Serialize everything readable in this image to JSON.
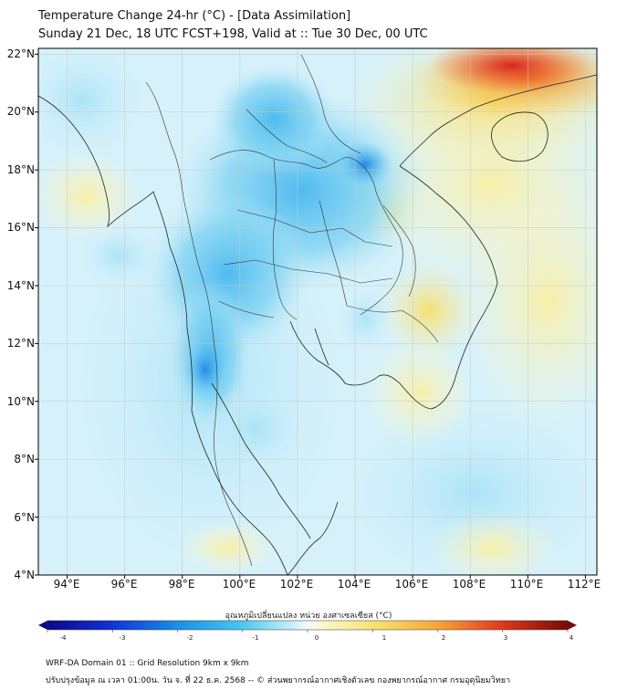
{
  "header": {
    "title": "Temperature Change 24-hr (°C) - [Data Assimilation]",
    "subtitle": "Sunday 21 Dec, 18 UTC FCST+198, Valid at :: Tue 30 Dec, 00 UTC"
  },
  "axes": {
    "lat_labels": [
      "22°N",
      "20°N",
      "18°N",
      "16°N",
      "14°N",
      "12°N",
      "10°N",
      "8°N",
      "6°N",
      "4°N"
    ],
    "lon_labels": [
      "94°E",
      "96°E",
      "98°E",
      "100°E",
      "102°E",
      "104°E",
      "106°E",
      "108°E",
      "110°E",
      "112°E"
    ],
    "lat_range": [
      4,
      22.2
    ],
    "lon_range": [
      93,
      112.4
    ]
  },
  "colorbar": {
    "title": "อุณหภูมิเปลี่ยนแปลง หน่วย องศาเซลเซียส (°C)",
    "ticks": [
      "-4",
      "-3",
      "-2",
      "-1",
      "0",
      "1",
      "2",
      "3",
      "4"
    ],
    "range": [
      -4,
      4
    ]
  },
  "footer": {
    "line1": "WRF-DA Domain 01 :: Grid Resolution 9km x 9km",
    "line2": "ปรับปรุงข้อมูล ณ เวลา 01:00น. วัน จ. ที่ 22 ธ.ค. 2568 -- © ส่วนพยากรณ์อากาศเชิงตัวเลข กองพยากรณ์อากาศ กรมอุตุนิยมวิทยา"
  },
  "colors": {
    "cold_strong": "#1e88e5",
    "cold": "#6fd0f2",
    "cold_light": "#c9eefb",
    "neutral": "#f4f9fb",
    "warm_light": "#fbf1b5",
    "warm": "#f8de6a",
    "hot": "#f08a2a",
    "very_hot": "#d81e1e"
  }
}
